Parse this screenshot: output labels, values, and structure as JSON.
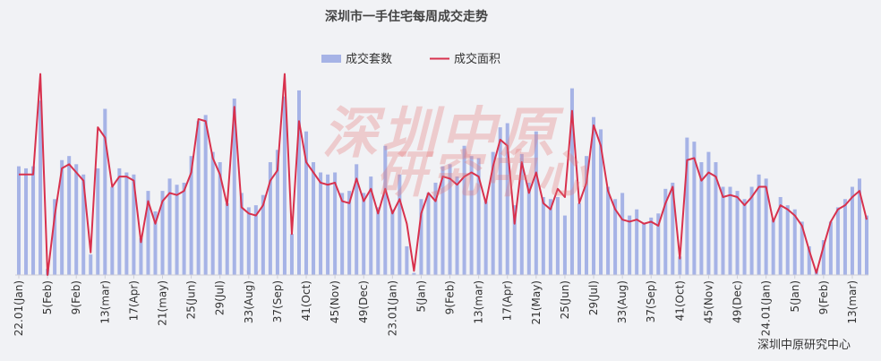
{
  "watermark": {
    "line1": "深圳中原",
    "line2": "研究中心"
  },
  "source": "深圳中原研究中心",
  "chart_data": {
    "type": "bar+line",
    "title": "深圳市一手住宅每周成交走势",
    "legend": {
      "position": "top-center",
      "bar_name": "成交套数",
      "line_name": "成交面积"
    },
    "colors": {
      "bar": "#a6b3e6",
      "line": "#d8314d"
    },
    "ylim": [
      0,
      100
    ],
    "grid": false,
    "y_axis_visible": false,
    "tick_labels": [
      {
        "index": 0,
        "label": "22.01(Jan)"
      },
      {
        "index": 4,
        "label": "5(Feb)"
      },
      {
        "index": 8,
        "label": "9(Feb)"
      },
      {
        "index": 12,
        "label": "13(mar)"
      },
      {
        "index": 16,
        "label": "17(Apr)"
      },
      {
        "index": 20,
        "label": "21(may)"
      },
      {
        "index": 24,
        "label": "25(Jun)"
      },
      {
        "index": 28,
        "label": "29(Jul)"
      },
      {
        "index": 32,
        "label": "33(Aug)"
      },
      {
        "index": 36,
        "label": "37(Sep)"
      },
      {
        "index": 40,
        "label": "41(Oct)"
      },
      {
        "index": 44,
        "label": "45(Nov)"
      },
      {
        "index": 48,
        "label": "49(Dec)"
      },
      {
        "index": 52,
        "label": "23.01(Jan)"
      },
      {
        "index": 56,
        "label": "5(Jan)"
      },
      {
        "index": 60,
        "label": "9(Feb)"
      },
      {
        "index": 64,
        "label": "13(mar)"
      },
      {
        "index": 68,
        "label": "17(Apr)"
      },
      {
        "index": 72,
        "label": "21(May)"
      },
      {
        "index": 76,
        "label": "25(Jun)"
      },
      {
        "index": 80,
        "label": "29(Jul)"
      },
      {
        "index": 84,
        "label": "33(Aug)"
      },
      {
        "index": 88,
        "label": "37(Sep)"
      },
      {
        "index": 92,
        "label": "41(Oct)"
      },
      {
        "index": 96,
        "label": "45(Nov)"
      },
      {
        "index": 100,
        "label": "49(Dec)"
      },
      {
        "index": 104,
        "label": "24.01(Jan)"
      },
      {
        "index": 108,
        "label": "5(Jan)"
      },
      {
        "index": 112,
        "label": "9(Feb)"
      },
      {
        "index": 116,
        "label": "13(mar)"
      }
    ],
    "bars": [
      53,
      52,
      53,
      85,
      3,
      37,
      56,
      58,
      54,
      49,
      10,
      52,
      81,
      43,
      52,
      50,
      49,
      18,
      41,
      31,
      41,
      47,
      44,
      45,
      58,
      75,
      78,
      60,
      55,
      35,
      86,
      40,
      33,
      34,
      39,
      55,
      61,
      87,
      20,
      90,
      70,
      55,
      50,
      49,
      50,
      40,
      41,
      54,
      40,
      48,
      33,
      63,
      32,
      49,
      14,
      1,
      37,
      40,
      45,
      53,
      54,
      48,
      63,
      58,
      57,
      36,
      60,
      72,
      74,
      34,
      59,
      45,
      70,
      38,
      37,
      38,
      29,
      91,
      35,
      58,
      77,
      71,
      43,
      37,
      40,
      29,
      32,
      25,
      28,
      30,
      42,
      45,
      9,
      67,
      65,
      55,
      60,
      55,
      43,
      43,
      41,
      37,
      43,
      49,
      47,
      27,
      38,
      34,
      32,
      26,
      14,
      3,
      17,
      26,
      33,
      37,
      43,
      47,
      29
    ],
    "line": [
      49,
      49,
      49,
      98,
      0,
      29,
      52,
      54,
      50,
      46,
      11,
      72,
      67,
      43,
      48,
      48,
      46,
      16,
      36,
      25,
      36,
      40,
      39,
      41,
      50,
      76,
      75,
      57,
      49,
      34,
      82,
      33,
      30,
      29,
      34,
      46,
      51,
      98,
      20,
      75,
      55,
      50,
      45,
      44,
      45,
      36,
      35,
      47,
      36,
      42,
      30,
      42,
      30,
      37,
      25,
      2,
      30,
      40,
      36,
      48,
      47,
      44,
      48,
      50,
      48,
      35,
      53,
      66,
      63,
      25,
      55,
      40,
      50,
      35,
      32,
      42,
      38,
      80,
      35,
      45,
      73,
      63,
      41,
      32,
      27,
      26,
      27,
      25,
      26,
      24,
      35,
      43,
      8,
      56,
      57,
      46,
      50,
      48,
      38,
      39,
      38,
      34,
      38,
      43,
      43,
      26,
      34,
      32,
      29,
      24,
      12,
      1,
      14,
      26,
      32,
      34,
      38,
      41,
      27
    ]
  }
}
